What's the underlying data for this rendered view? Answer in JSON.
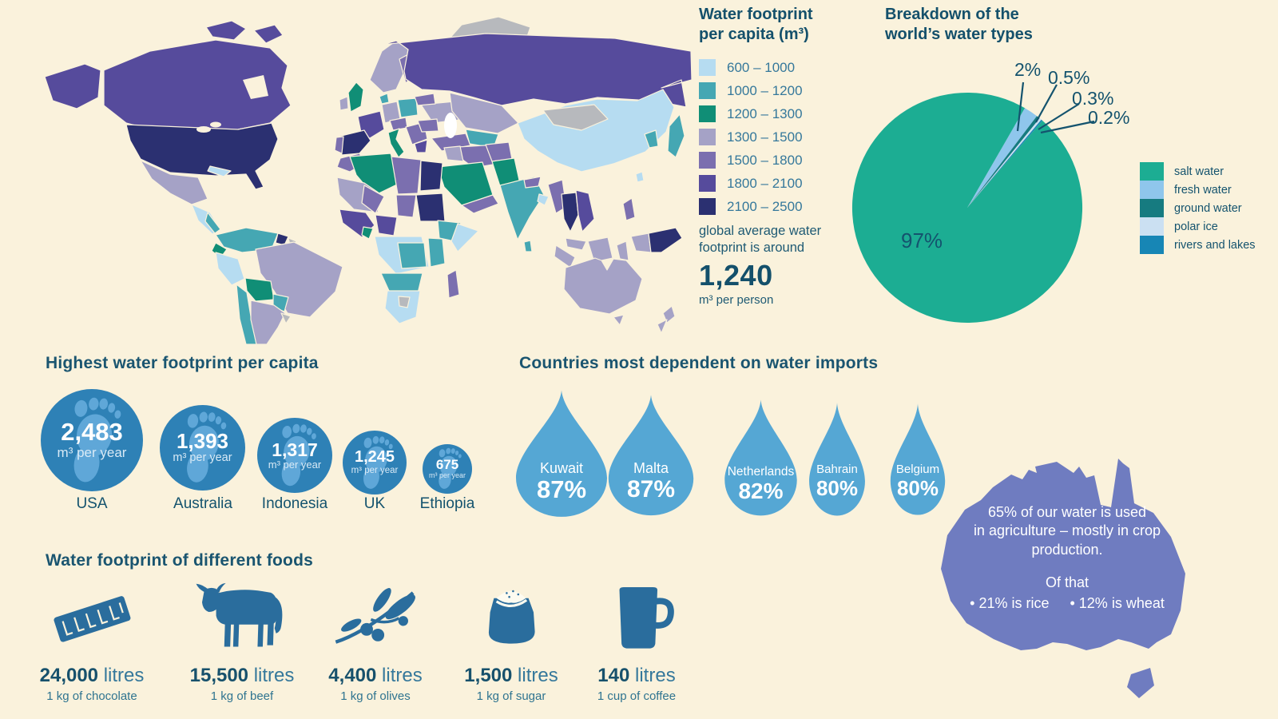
{
  "palette": {
    "background": "#FAF2DC",
    "heading": "#1A5570",
    "legend_text": "#35789B",
    "map_no_data": "#B7B9BD",
    "drop_blue": "#55A7D4",
    "circle_blue": "#2E81B6",
    "foot_light": "#5FA7D8",
    "australia_purple": "#6F7CC0",
    "icon_blue": "#2A6D9D"
  },
  "chart_data": [
    {
      "type": "pie",
      "title": "Breakdown of the\nworld’s water types",
      "labels": [
        "salt water",
        "fresh water",
        "ground water",
        "polar ice",
        "rivers and lakes"
      ],
      "values": [
        97,
        2,
        0.5,
        0.3,
        0.2
      ],
      "display_labels": [
        "97%",
        "2%",
        "0.5%",
        "0.3%",
        "0.2%"
      ],
      "colors": [
        "#1CAD93",
        "#8FC6EC",
        "#167B80",
        "#CBE0F2",
        "#1786B5"
      ],
      "start_angle": 30,
      "draw_order": [
        1,
        2,
        3,
        4,
        0
      ],
      "legend_position": "right"
    },
    {
      "type": "bar",
      "title": "Highest water footprint per capita",
      "categories": [
        "USA",
        "Australia",
        "Indonesia",
        "UK",
        "Ethiopia"
      ],
      "values": [
        2483,
        1393,
        1317,
        1245,
        675
      ],
      "display_values": [
        "2,483",
        "1,393",
        "1,317",
        "1,245",
        "675"
      ],
      "unit": "m³ per year"
    },
    {
      "type": "bar",
      "title": "Countries most dependent on water imports",
      "categories": [
        "Kuwait",
        "Malta",
        "Netherlands",
        "Bahrain",
        "Belgium"
      ],
      "values": [
        87,
        87,
        82,
        80,
        80
      ],
      "display_values": [
        "87%",
        "87%",
        "82%",
        "80%",
        "80%"
      ]
    },
    {
      "type": "bar",
      "title": "Water footprint of different foods",
      "categories": [
        "1 kg of chocolate",
        "1 kg of beef",
        "1 kg of olives",
        "1 kg of sugar",
        "1 cup of coffee"
      ],
      "values": [
        24000,
        15500,
        4400,
        1500,
        140
      ],
      "display_values": [
        "24,000",
        "15,500",
        "4,400",
        "1,500",
        "140"
      ],
      "unit": "litres",
      "icons": [
        "chocolate-bar",
        "cow",
        "olive-branch",
        "sugar-sack",
        "coffee-mug"
      ]
    },
    {
      "type": "heatmap",
      "title": "Water footprint\nper capita (m³)",
      "bins": [
        {
          "range": "600 – 1000",
          "color": "#B6DCF1"
        },
        {
          "range": "1000 – 1200",
          "color": "#45A7B3"
        },
        {
          "range": "1200 – 1300",
          "color": "#108E76"
        },
        {
          "range": "1300 – 1500",
          "color": "#A5A2C6"
        },
        {
          "range": "1500 – 1800",
          "color": "#7B6FAF"
        },
        {
          "range": "1800 – 2100",
          "color": "#564B9C"
        },
        {
          "range": "2100 – 2500",
          "color": "#2B3071"
        }
      ],
      "note": "global average water\nfootprint is around",
      "average_value": "1,240",
      "average_unit": "m³ per person"
    }
  ],
  "australia_fact": {
    "body": "65% of our water is used\nin agriculture – mostly in crop\nproduction.",
    "subtitle": "Of that",
    "bullets": [
      "• 21% is rice",
      "• 12% is wheat"
    ]
  }
}
